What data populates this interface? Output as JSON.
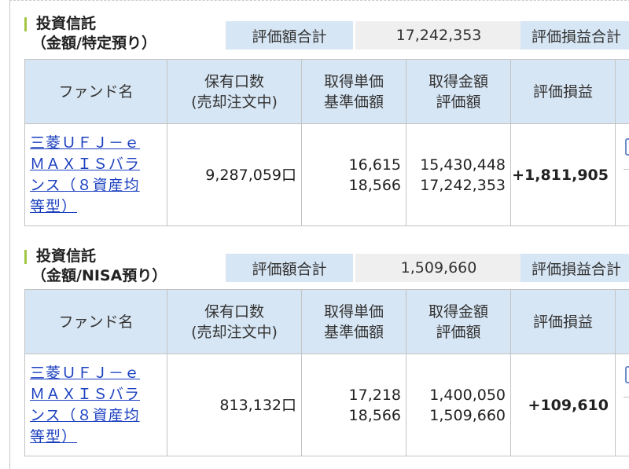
{
  "sections": [
    {
      "title": "投資信託",
      "subtitle": "（金額/特定預り）",
      "summary_label": "評価額合計",
      "summary_value": "17,242,353",
      "summary_label2": "評価損益合計",
      "headers": {
        "fund_name": "ファンド名",
        "holding_line1": "保有口数",
        "holding_line2": "(売却注文中)",
        "unit_line1": "取得単価",
        "unit_line2": "基準価額",
        "amount_line1": "取得金額",
        "amount_line2": "評価額",
        "profit": "評価損益"
      },
      "row": {
        "fund_name_lines": [
          "三菱ＵＦＪ－ｅ",
          "ＭＡＸＩＳバラ",
          "ンス（８資産均",
          "等型）"
        ],
        "units": "9,287,059口",
        "acq_unit_price": "16,615",
        "base_price": "18,566",
        "acq_amount": "15,430,448",
        "valuation": "17,242,353",
        "profit": "+1,811,905"
      }
    },
    {
      "title": "投資信託",
      "subtitle": "（金額/NISA預り）",
      "summary_label": "評価額合計",
      "summary_value": "1,509,660",
      "summary_label2": "評価損益合計",
      "headers": {
        "fund_name": "ファンド名",
        "holding_line1": "保有口数",
        "holding_line2": "(売却注文中)",
        "unit_line1": "取得単価",
        "unit_line2": "基準価額",
        "amount_line1": "取得金額",
        "amount_line2": "評価額",
        "profit": "評価損益"
      },
      "row": {
        "fund_name_lines": [
          "三菱ＵＦＪ－ｅ",
          "ＭＡＸＩＳバラ",
          "ンス（８資産均",
          "等型）"
        ],
        "units": "813,132口",
        "acq_unit_price": "17,218",
        "base_price": "18,566",
        "acq_amount": "1,400,050",
        "valuation": "1,509,660",
        "profit": "+109,610"
      }
    }
  ]
}
